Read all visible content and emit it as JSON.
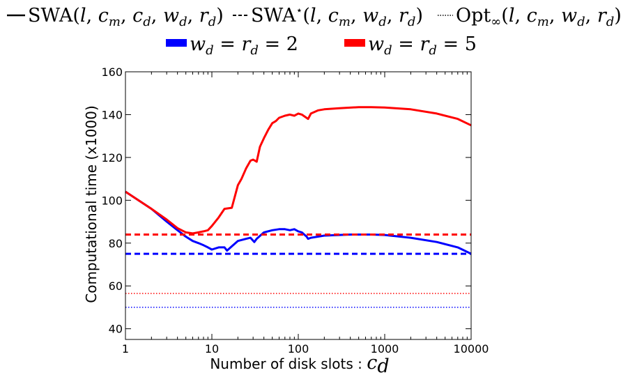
{
  "legend": {
    "row1": [
      {
        "style": "solid",
        "label": "SWA(l, cm, cd, wd, rd)"
      },
      {
        "style": "dashed",
        "label": "SWA⋆(l, cm, wd, rd)"
      },
      {
        "style": "dotted",
        "label": "Opt∞(l, cm, wd, rd)"
      }
    ],
    "row2": [
      {
        "color": "#0000ff",
        "label": "wd = rd = 2"
      },
      {
        "color": "#ff0000",
        "label": "wd = rd = 5"
      }
    ]
  },
  "chart_data": {
    "type": "line",
    "title": "",
    "xlabel": "Number of disk slots : cd",
    "ylabel": "Computational time (x1000)",
    "xscale": "log",
    "xlim": [
      1,
      10000
    ],
    "ylim": [
      35,
      160
    ],
    "xticks": [
      1,
      10,
      100,
      1000,
      10000
    ],
    "xtick_labels": [
      "1",
      "10",
      "100",
      "1000",
      "10000"
    ],
    "yticks": [
      40,
      60,
      80,
      100,
      120,
      140,
      160
    ],
    "ytick_labels": [
      "40",
      "60",
      "80",
      "100",
      "120",
      "140",
      "160"
    ],
    "grid": false,
    "series": [
      {
        "name": "SWA, wd = rd = 2",
        "color": "#0000ff",
        "style": "solid",
        "x": [
          1,
          2,
          3,
          4,
          5,
          6,
          7,
          8,
          9,
          10,
          12,
          14,
          15,
          17,
          20,
          25,
          28,
          31,
          33,
          40,
          50,
          60,
          70,
          80,
          90,
          100,
          110,
          125,
          130,
          140,
          200,
          400,
          700,
          1000,
          2000,
          4000,
          7000,
          10000
        ],
        "y": [
          104,
          96,
          90,
          86,
          83,
          81,
          80,
          79,
          78,
          77,
          78,
          78,
          76.5,
          78.5,
          81,
          82,
          82.5,
          80.5,
          82,
          85,
          86,
          86.5,
          86.5,
          86,
          86.5,
          85.5,
          85,
          83,
          82,
          82.5,
          83.5,
          84,
          84,
          83.8,
          82.5,
          80.5,
          78,
          75
        ]
      },
      {
        "name": "SWA, wd = rd = 5",
        "color": "#ff0000",
        "style": "solid",
        "x": [
          1,
          2,
          3,
          4,
          5,
          6,
          7,
          8,
          9,
          10,
          12,
          14,
          17,
          20,
          22,
          25,
          28,
          30,
          33,
          36,
          40,
          45,
          50,
          55,
          60,
          70,
          80,
          90,
          100,
          110,
          130,
          140,
          170,
          200,
          300,
          500,
          700,
          1000,
          2000,
          4000,
          7000,
          10000
        ],
        "y": [
          104,
          96,
          91,
          87,
          85,
          84.5,
          85,
          85.5,
          86,
          88,
          92,
          96,
          96.5,
          107,
          110,
          115,
          118.5,
          119,
          118,
          125,
          129,
          133,
          136,
          137,
          138.5,
          139.5,
          140,
          139.5,
          140.5,
          140,
          138,
          140.5,
          142,
          142.5,
          143,
          143.5,
          143.5,
          143.3,
          142.5,
          140.5,
          138,
          135
        ]
      },
      {
        "name": "SWA⋆, wd = rd = 2",
        "color": "#0000ff",
        "style": "dashed",
        "x": [
          1,
          10000
        ],
        "y": [
          75,
          75
        ]
      },
      {
        "name": "SWA⋆, wd = rd = 5",
        "color": "#ff0000",
        "style": "dashed",
        "x": [
          1,
          10000
        ],
        "y": [
          84,
          84
        ]
      },
      {
        "name": "Opt∞, wd = rd = 2",
        "color": "#0000ff",
        "style": "dotted",
        "x": [
          1,
          10000
        ],
        "y": [
          50,
          50
        ]
      },
      {
        "name": "Opt∞, wd = rd = 5",
        "color": "#ff0000",
        "style": "dotted",
        "x": [
          1,
          10000
        ],
        "y": [
          56.5,
          56.5
        ]
      }
    ]
  }
}
